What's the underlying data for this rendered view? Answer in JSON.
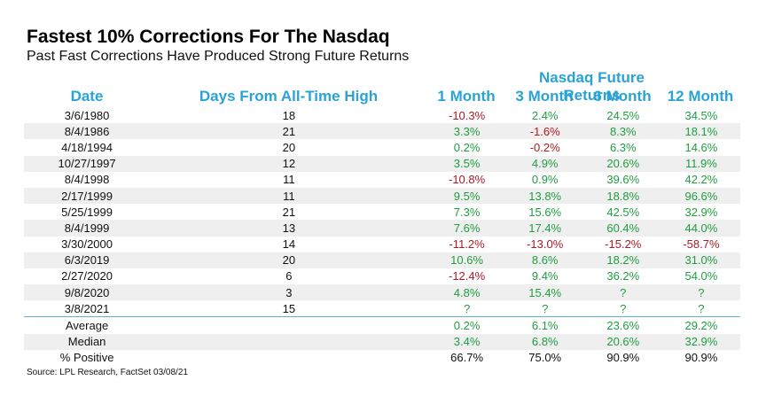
{
  "title": "Fastest 10% Corrections For The Nasdaq",
  "subtitle": "Past Fast Corrections Have Produced Strong Future Returns",
  "group_header": "Nasdaq Future Returns",
  "columns": {
    "date": "Date",
    "days": "Days From All-Time High",
    "m1": "1 Month",
    "m3": "3 Month",
    "m6": "6 Month",
    "m12": "12 Month"
  },
  "rows": [
    {
      "date": "3/6/1980",
      "days": "18",
      "m1": "-10.3%",
      "m3": "2.4%",
      "m6": "24.5%",
      "m12": "34.5%"
    },
    {
      "date": "8/4/1986",
      "days": "21",
      "m1": "3.3%",
      "m3": "-1.6%",
      "m6": "8.3%",
      "m12": "18.1%"
    },
    {
      "date": "4/18/1994",
      "days": "20",
      "m1": "0.2%",
      "m3": "-0.2%",
      "m6": "6.3%",
      "m12": "14.6%"
    },
    {
      "date": "10/27/1997",
      "days": "12",
      "m1": "3.5%",
      "m3": "4.9%",
      "m6": "20.6%",
      "m12": "11.9%"
    },
    {
      "date": "8/4/1998",
      "days": "11",
      "m1": "-10.8%",
      "m3": "0.9%",
      "m6": "39.6%",
      "m12": "42.2%"
    },
    {
      "date": "2/17/1999",
      "days": "11",
      "m1": "9.5%",
      "m3": "13.8%",
      "m6": "18.8%",
      "m12": "96.6%"
    },
    {
      "date": "5/25/1999",
      "days": "21",
      "m1": "7.3%",
      "m3": "15.6%",
      "m6": "42.5%",
      "m12": "32.9%"
    },
    {
      "date": "8/4/1999",
      "days": "13",
      "m1": "7.6%",
      "m3": "17.4%",
      "m6": "60.4%",
      "m12": "44.0%"
    },
    {
      "date": "3/30/2000",
      "days": "14",
      "m1": "-11.2%",
      "m3": "-13.0%",
      "m6": "-15.2%",
      "m12": "-58.7%"
    },
    {
      "date": "6/3/2019",
      "days": "20",
      "m1": "10.6%",
      "m3": "8.6%",
      "m6": "18.2%",
      "m12": "31.0%"
    },
    {
      "date": "2/27/2020",
      "days": "6",
      "m1": "-12.4%",
      "m3": "9.4%",
      "m6": "36.2%",
      "m12": "54.0%"
    },
    {
      "date": "9/8/2020",
      "days": "3",
      "m1": "4.8%",
      "m3": "15.4%",
      "m6": "?",
      "m12": "?"
    },
    {
      "date": "3/8/2021",
      "days": "15",
      "m1": "?",
      "m3": "?",
      "m6": "?",
      "m12": "?"
    }
  ],
  "summary": [
    {
      "label": "Average",
      "m1": "0.2%",
      "m3": "6.1%",
      "m6": "23.6%",
      "m12": "29.2%"
    },
    {
      "label": "Median",
      "m1": "3.4%",
      "m3": "6.8%",
      "m6": "20.6%",
      "m12": "32.9%"
    },
    {
      "label": "% Positive",
      "m1": "66.7%",
      "m3": "75.0%",
      "m6": "90.9%",
      "m12": "90.9%"
    }
  ],
  "source": "Source: LPL Research, FactSet 03/08/21",
  "colors": {
    "header": "#29a3d6",
    "positive": "#1f9e3f",
    "negative": "#b01824",
    "shade": "#efefef"
  }
}
